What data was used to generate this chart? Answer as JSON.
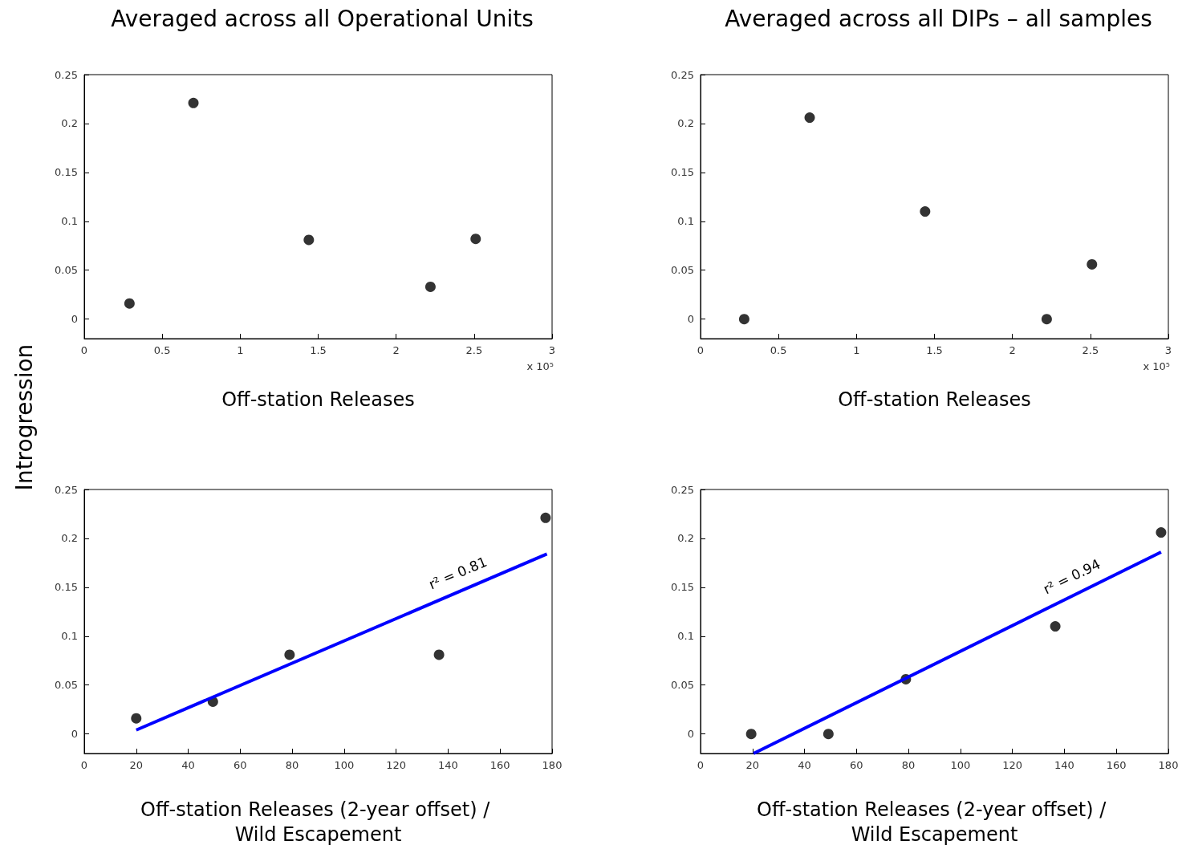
{
  "chart_data": [
    {
      "type": "scatter",
      "title": "Averaged across all Operational Units",
      "xlabel": "Off-station Releases",
      "ylabel": "Introgression",
      "annotations": [
        "x 10⁵"
      ],
      "xlim": [
        0,
        3
      ],
      "xticks": [
        0,
        0.5,
        1,
        1.5,
        2,
        2.5,
        3
      ],
      "ylim": [
        -0.02,
        0.25
      ],
      "yticks": [
        0,
        0.05,
        0.1,
        0.15,
        0.2,
        0.25
      ],
      "marker": "circle",
      "grid": false,
      "series": [
        {
          "color": "#000000",
          "x": [
            0.29,
            0.7,
            1.44,
            2.22,
            2.51
          ],
          "values": [
            0.016,
            0.221,
            0.081,
            0.033,
            0.082
          ]
        }
      ]
    },
    {
      "type": "scatter",
      "title": "Averaged across all DIPs – all samples",
      "xlabel": "Off-station Releases",
      "annotations": [
        "x 10⁵"
      ],
      "xlim": [
        0,
        3
      ],
      "xticks": [
        0,
        0.5,
        1,
        1.5,
        2,
        2.5,
        3
      ],
      "ylim": [
        -0.02,
        0.25
      ],
      "yticks": [
        0,
        0.05,
        0.1,
        0.15,
        0.2,
        0.25
      ],
      "marker": "circle",
      "grid": false,
      "series": [
        {
          "color": "#000000",
          "x": [
            0.28,
            0.7,
            1.44,
            2.22,
            2.51
          ],
          "values": [
            0,
            0.206,
            0.11,
            0,
            0.056
          ]
        }
      ]
    },
    {
      "type": "scatter",
      "xlabel": "Off-station Releases (2-year offset) / Wild Escapement",
      "annotations": [
        "r² = 0.81"
      ],
      "xlim": [
        0,
        180
      ],
      "xticks": [
        0,
        20,
        40,
        60,
        80,
        100,
        120,
        140,
        160,
        180
      ],
      "ylim": [
        -0.02,
        0.25
      ],
      "yticks": [
        0,
        0.05,
        0.1,
        0.15,
        0.2,
        0.25
      ],
      "marker": "circle",
      "grid": false,
      "series": [
        {
          "color": "#000000",
          "x": [
            20,
            49.5,
            79,
            136.5,
            177.5
          ],
          "values": [
            0.016,
            0.033,
            0.081,
            0.081,
            0.221
          ]
        },
        {
          "type": "line",
          "marker": "none",
          "color": "#0000ff",
          "x": [
            20,
            178
          ],
          "values": [
            0.004,
            0.184
          ]
        }
      ]
    },
    {
      "type": "scatter",
      "xlabel": "Off-station Releases (2-year offset) / Wild Escapement",
      "annotations": [
        "r² = 0.94"
      ],
      "xlim": [
        0,
        180
      ],
      "xticks": [
        0,
        20,
        40,
        60,
        80,
        100,
        120,
        140,
        160,
        180
      ],
      "ylim": [
        -0.02,
        0.25
      ],
      "yticks": [
        0,
        0.05,
        0.1,
        0.15,
        0.2,
        0.25
      ],
      "marker": "circle",
      "grid": false,
      "series": [
        {
          "color": "#000000",
          "x": [
            19.5,
            49.2,
            79,
            136.5,
            177.2
          ],
          "values": [
            0,
            0,
            0.056,
            0.11,
            0.206
          ]
        },
        {
          "type": "line",
          "marker": "none",
          "color": "#0000ff",
          "x": [
            20.4,
            177.2
          ],
          "values": [
            -0.02,
            0.186
          ]
        }
      ]
    }
  ]
}
